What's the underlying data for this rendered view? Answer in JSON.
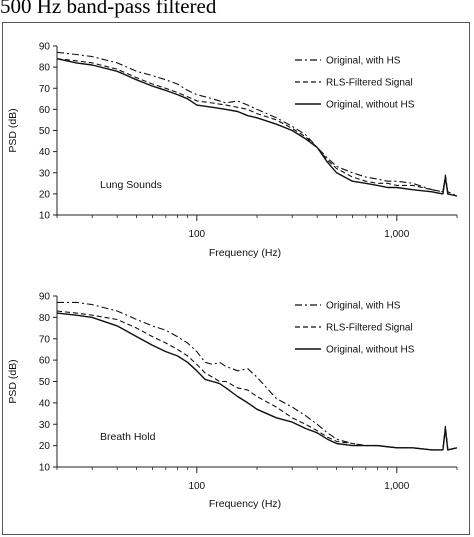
{
  "caption": "500 Hz band-pass filtered",
  "chart_data": [
    {
      "type": "line",
      "title": "",
      "annotation": "Lung Sounds",
      "xlabel": "Frequency (Hz)",
      "ylabel": "PSD (dB)",
      "xscale": "log",
      "xlim": [
        20,
        2000
      ],
      "ylim": [
        10,
        90
      ],
      "xticks": [
        100,
        1000
      ],
      "xtick_labels": [
        "100",
        "1,000"
      ],
      "yticks": [
        10,
        20,
        30,
        40,
        50,
        60,
        70,
        80,
        90
      ],
      "legend_position": "top-right",
      "series": [
        {
          "name": "Original, with HS",
          "style": "dash-dot",
          "x": [
            20,
            25,
            30,
            40,
            50,
            60,
            70,
            80,
            90,
            100,
            120,
            140,
            160,
            180,
            200,
            250,
            300,
            350,
            400,
            450,
            500,
            600,
            700,
            800,
            900,
            1000,
            1200,
            1500,
            1700,
            1750,
            1800,
            2000
          ],
          "y": [
            87,
            86,
            85,
            82,
            78,
            76,
            74,
            72,
            69,
            67,
            65,
            63,
            64,
            62,
            60,
            56,
            52,
            48,
            42,
            37,
            33,
            30,
            28,
            27,
            26,
            26,
            25,
            22,
            21,
            29,
            21,
            19
          ]
        },
        {
          "name": "RLS-Filtered Signal",
          "style": "dashed",
          "x": [
            20,
            25,
            30,
            40,
            50,
            60,
            70,
            80,
            90,
            100,
            120,
            140,
            160,
            180,
            200,
            250,
            300,
            350,
            400,
            450,
            500,
            600,
            700,
            800,
            900,
            1000,
            1200,
            1500,
            1700,
            1750,
            1800,
            2000
          ],
          "y": [
            84,
            83,
            82,
            79,
            75,
            72,
            70,
            68,
            66,
            64,
            63,
            62,
            61,
            60,
            58,
            55,
            51,
            47,
            42,
            36,
            32,
            28,
            26,
            25,
            25,
            24,
            24,
            22,
            21,
            28,
            20,
            19
          ]
        },
        {
          "name": "Original, without HS",
          "style": "solid",
          "x": [
            20,
            25,
            30,
            40,
            50,
            60,
            70,
            80,
            90,
            100,
            120,
            140,
            160,
            180,
            200,
            250,
            300,
            350,
            400,
            450,
            500,
            600,
            700,
            800,
            900,
            1000,
            1200,
            1500,
            1700,
            1750,
            1800,
            2000
          ],
          "y": [
            84,
            82,
            81,
            78,
            74,
            71,
            69,
            67,
            65,
            62,
            61,
            60,
            59,
            57,
            56,
            53,
            50,
            46,
            42,
            35,
            30,
            26,
            25,
            24,
            23,
            23,
            22,
            21,
            20,
            28,
            20,
            19
          ]
        }
      ]
    },
    {
      "type": "line",
      "title": "",
      "annotation": "Breath Hold",
      "xlabel": "Frequency (Hz)",
      "ylabel": "PSD (dB)",
      "xscale": "log",
      "xlim": [
        20,
        2000
      ],
      "ylim": [
        10,
        90
      ],
      "xticks": [
        100,
        1000
      ],
      "xtick_labels": [
        "100",
        "1,000"
      ],
      "yticks": [
        10,
        20,
        30,
        40,
        50,
        60,
        70,
        80,
        90
      ],
      "legend_position": "top-right",
      "series": [
        {
          "name": "Original, with HS",
          "style": "dash-dot",
          "x": [
            20,
            25,
            30,
            40,
            50,
            60,
            70,
            80,
            90,
            100,
            110,
            120,
            130,
            140,
            160,
            180,
            200,
            250,
            300,
            350,
            400,
            450,
            500,
            600,
            700,
            800,
            1000,
            1200,
            1500,
            1700,
            1750,
            1800,
            2000
          ],
          "y": [
            87,
            87,
            86,
            83,
            79,
            76,
            74,
            71,
            68,
            64,
            59,
            58,
            59,
            57,
            55,
            56,
            52,
            42,
            38,
            34,
            30,
            26,
            23,
            21,
            20,
            20,
            19,
            19,
            18,
            18,
            29,
            18,
            19
          ]
        },
        {
          "name": "RLS-Filtered Signal",
          "style": "dashed",
          "x": [
            20,
            25,
            30,
            40,
            50,
            60,
            70,
            80,
            90,
            100,
            110,
            120,
            130,
            140,
            160,
            180,
            200,
            250,
            300,
            350,
            400,
            450,
            500,
            600,
            700,
            800,
            1000,
            1200,
            1500,
            1700,
            1750,
            1800,
            2000
          ],
          "y": [
            83,
            82,
            81,
            79,
            75,
            71,
            68,
            65,
            62,
            58,
            54,
            52,
            50,
            50,
            47,
            46,
            43,
            38,
            33,
            30,
            27,
            24,
            22,
            21,
            20,
            20,
            19,
            19,
            18,
            18,
            29,
            18,
            19
          ]
        },
        {
          "name": "Original, without HS",
          "style": "solid",
          "x": [
            20,
            25,
            30,
            40,
            50,
            60,
            70,
            80,
            90,
            100,
            110,
            120,
            130,
            140,
            160,
            180,
            200,
            250,
            300,
            350,
            400,
            450,
            500,
            600,
            700,
            800,
            1000,
            1200,
            1500,
            1700,
            1750,
            1800,
            2000
          ],
          "y": [
            82,
            81,
            80,
            76,
            71,
            67,
            64,
            62,
            59,
            55,
            51,
            50,
            49,
            47,
            43,
            40,
            37,
            33,
            31,
            28,
            26,
            23,
            21,
            20,
            20,
            20,
            19,
            19,
            18,
            18,
            28,
            18,
            19
          ]
        }
      ]
    }
  ]
}
